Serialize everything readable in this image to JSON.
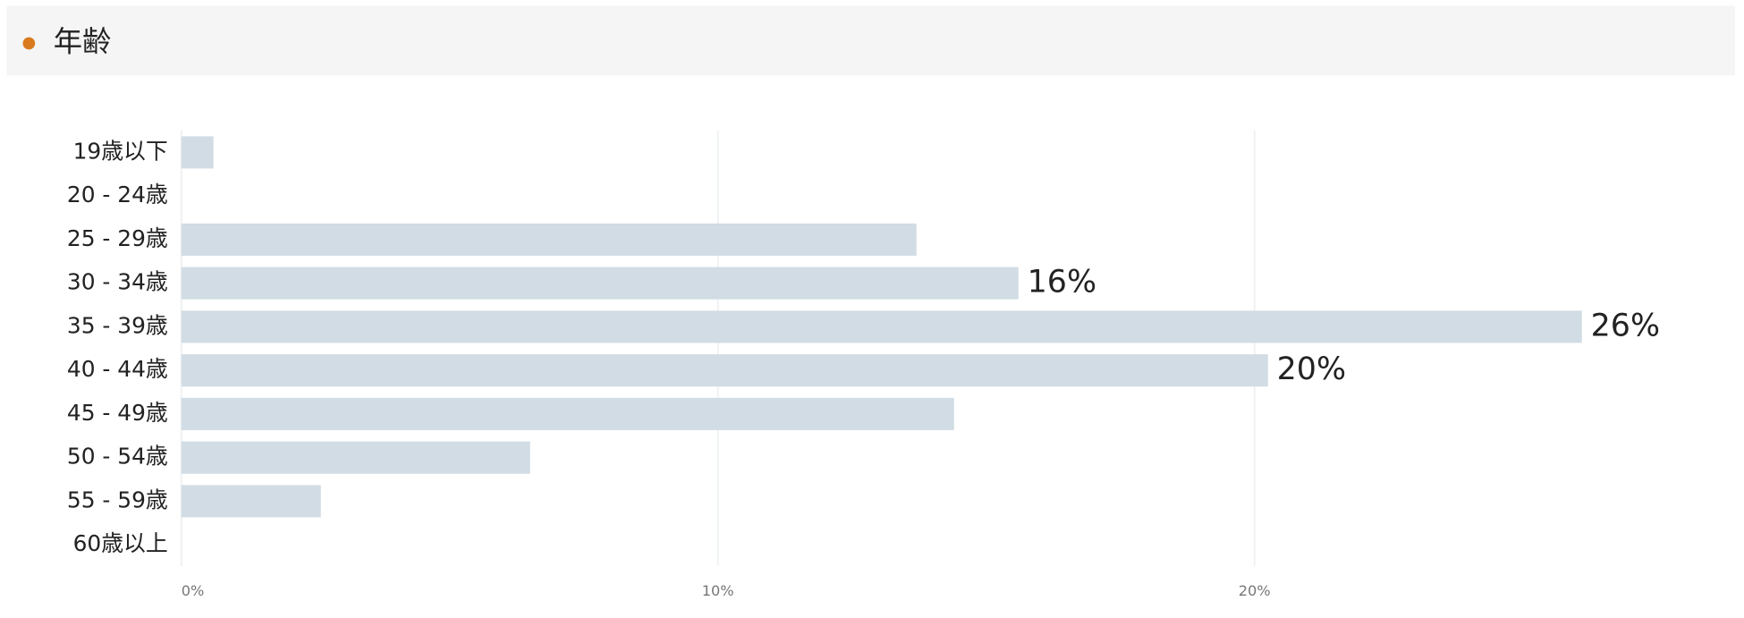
{
  "chart_data": {
    "type": "hbar",
    "title": "年齢",
    "categories": [
      "19歳以下",
      "20 - 24歳",
      "25 - 29歳",
      "30 - 34歳",
      "35 - 39歳",
      "40 - 44歳",
      "45 - 49歳",
      "50 - 54歳",
      "55 - 59歳",
      "60歳以上"
    ],
    "values": [
      0.6,
      0,
      13.7,
      15.6,
      26.1,
      20.25,
      14.4,
      6.5,
      2.6,
      0
    ],
    "value_labels": [
      null,
      null,
      null,
      "16%",
      "26%",
      "20%",
      null,
      null,
      null,
      null
    ],
    "color": "#d1dce4",
    "xlim": [
      0,
      28.5
    ],
    "xticks": [
      {
        "value": 0,
        "label": "0%"
      },
      {
        "value": 10,
        "label": "10%"
      },
      {
        "value": 20,
        "label": "20%"
      }
    ],
    "grid": true
  }
}
